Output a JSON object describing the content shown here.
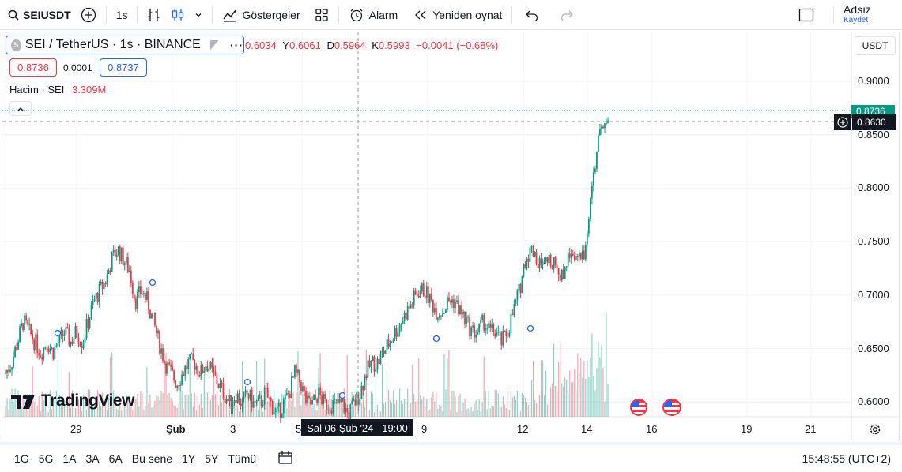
{
  "topbar": {
    "symbol": "SEIUSDT",
    "interval": "1s",
    "indicators": "Göstergeler",
    "alarm": "Alarm",
    "replay": "Yeniden oynat",
    "layout_name": "Adsız",
    "save": "Kaydet"
  },
  "legend": {
    "title": "SEI / TetherUS · 1s · BINANCE",
    "ohlc": [
      {
        "key": "",
        "value": "0.6034"
      },
      {
        "key": "Y",
        "value": "0.6061"
      },
      {
        "key": "D",
        "value": "0.5964"
      },
      {
        "key": "K",
        "value": "0.5993"
      }
    ],
    "change": "−0.0041 (−0.68%)",
    "sell_price": "0.8736",
    "spread": "0.0001",
    "buy_price": "0.8737",
    "volume_label": "Hacim · SEI",
    "volume_value": "3.309M"
  },
  "price_axis": {
    "currency": "USDT",
    "ticks": [
      "0.9000",
      "0.8500",
      "0.8000",
      "0.7500",
      "0.7000",
      "0.6500",
      "0.6000"
    ],
    "last_price": "0.8736",
    "crosshair_price": "0.8630"
  },
  "time_axis": {
    "ticks": [
      "29",
      "Şub",
      "3",
      "5",
      "9",
      "12",
      "14",
      "16",
      "19",
      "21"
    ],
    "crosshair_label": "Sal 06 Şub '24   19:00"
  },
  "watermark": "TradingView",
  "bottombar": {
    "ranges": [
      "1G",
      "5G",
      "1A",
      "3A",
      "6A",
      "Bu sene",
      "1Y",
      "5Y",
      "Tümü"
    ],
    "clock": "15:48:55 (UTC+2)"
  },
  "colors": {
    "up": "#089981",
    "down": "#f23645",
    "accent": "#2962ff"
  },
  "chart_data": {
    "type": "candlestick",
    "ylim": [
      0.59,
      0.915
    ],
    "close_path": [
      0.63,
      0.64,
      0.66,
      0.68,
      0.67,
      0.66,
      0.65,
      0.66,
      0.65,
      0.66,
      0.67,
      0.66,
      0.67,
      0.66,
      0.68,
      0.7,
      0.71,
      0.72,
      0.74,
      0.75,
      0.74,
      0.73,
      0.7,
      0.71,
      0.7,
      0.68,
      0.66,
      0.64,
      0.63,
      0.62,
      0.63,
      0.64,
      0.64,
      0.63,
      0.64,
      0.63,
      0.62,
      0.61,
      0.6,
      0.61,
      0.6,
      0.61,
      0.6,
      0.6,
      0.61,
      0.6,
      0.59,
      0.6,
      0.61,
      0.63,
      0.62,
      0.6,
      0.6,
      0.61,
      0.6,
      0.6,
      0.6,
      0.6,
      0.59,
      0.6,
      0.61,
      0.63,
      0.64,
      0.64,
      0.65,
      0.66,
      0.67,
      0.68,
      0.69,
      0.7,
      0.71,
      0.71,
      0.7,
      0.69,
      0.69,
      0.7,
      0.7,
      0.69,
      0.68,
      0.67,
      0.67,
      0.68,
      0.67,
      0.67,
      0.66,
      0.67,
      0.69,
      0.71,
      0.74,
      0.75,
      0.74,
      0.73,
      0.74,
      0.74,
      0.72,
      0.74,
      0.75,
      0.74,
      0.74,
      0.8,
      0.84,
      0.87,
      0.8736
    ]
  }
}
